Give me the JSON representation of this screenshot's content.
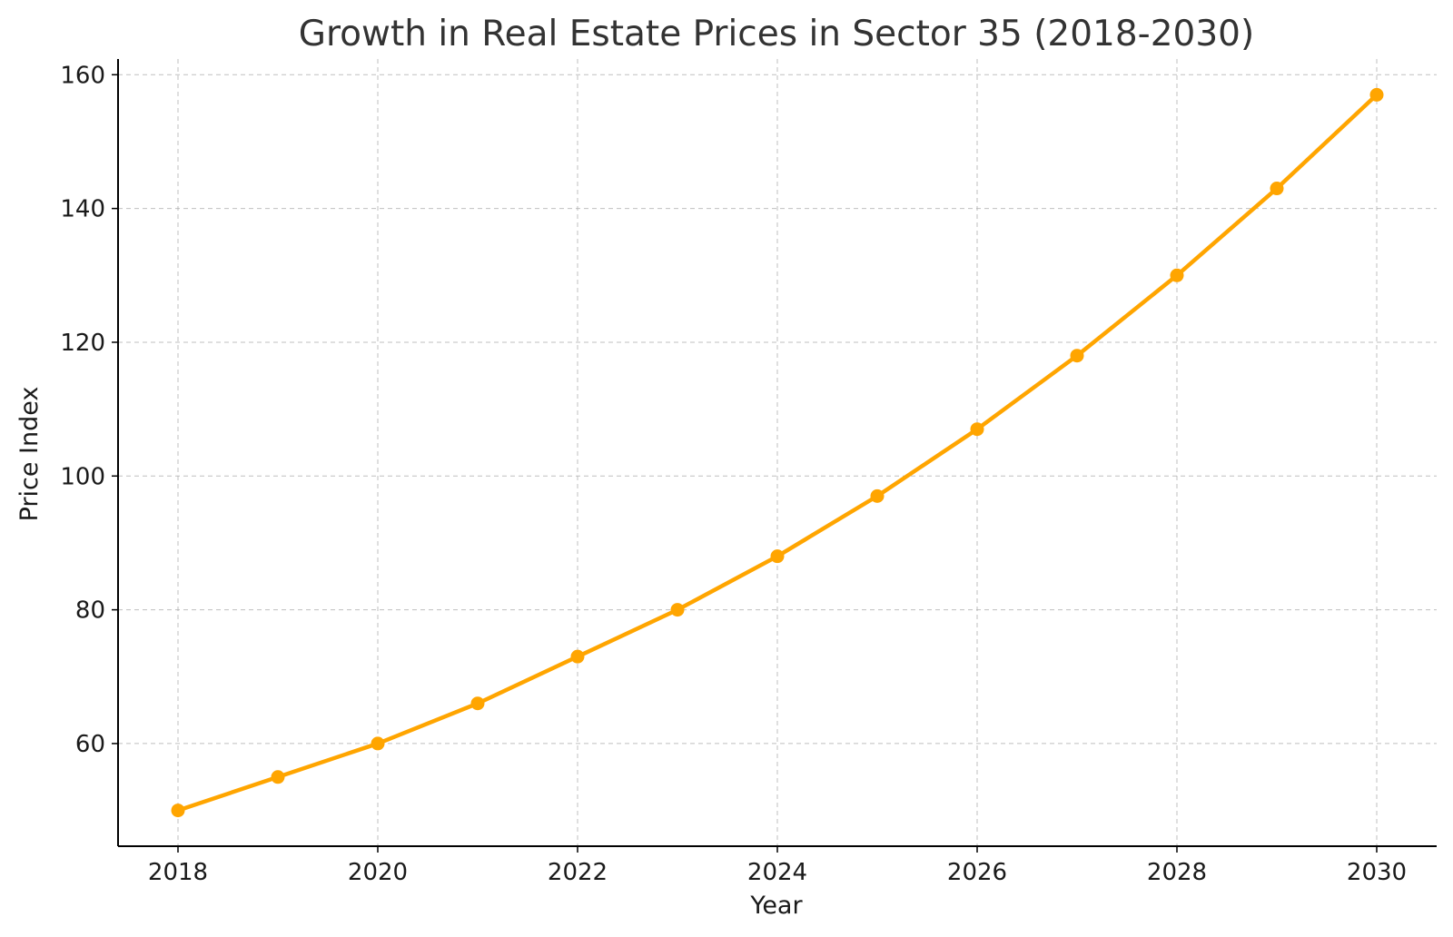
{
  "chart_data": {
    "type": "line",
    "title": "Growth in Real Estate Prices in Sector 35 (2018-2030)",
    "xlabel": "Year",
    "ylabel": "Price Index",
    "x": [
      2018,
      2019,
      2020,
      2021,
      2022,
      2023,
      2024,
      2025,
      2026,
      2027,
      2028,
      2029,
      2030
    ],
    "series": [
      {
        "values": [
          50,
          55,
          60,
          66,
          73,
          80,
          88,
          97,
          107,
          118,
          130,
          143,
          157
        ],
        "color": "#FFA500",
        "marker": "circle"
      }
    ],
    "xlim": [
      2017.4,
      2030.6
    ],
    "ylim": [
      44.65,
      162.35
    ],
    "xticks": [
      2018,
      2020,
      2022,
      2024,
      2026,
      2028,
      2030
    ],
    "yticks": [
      60,
      80,
      100,
      120,
      140,
      160
    ],
    "grid": true,
    "legend": "none"
  }
}
